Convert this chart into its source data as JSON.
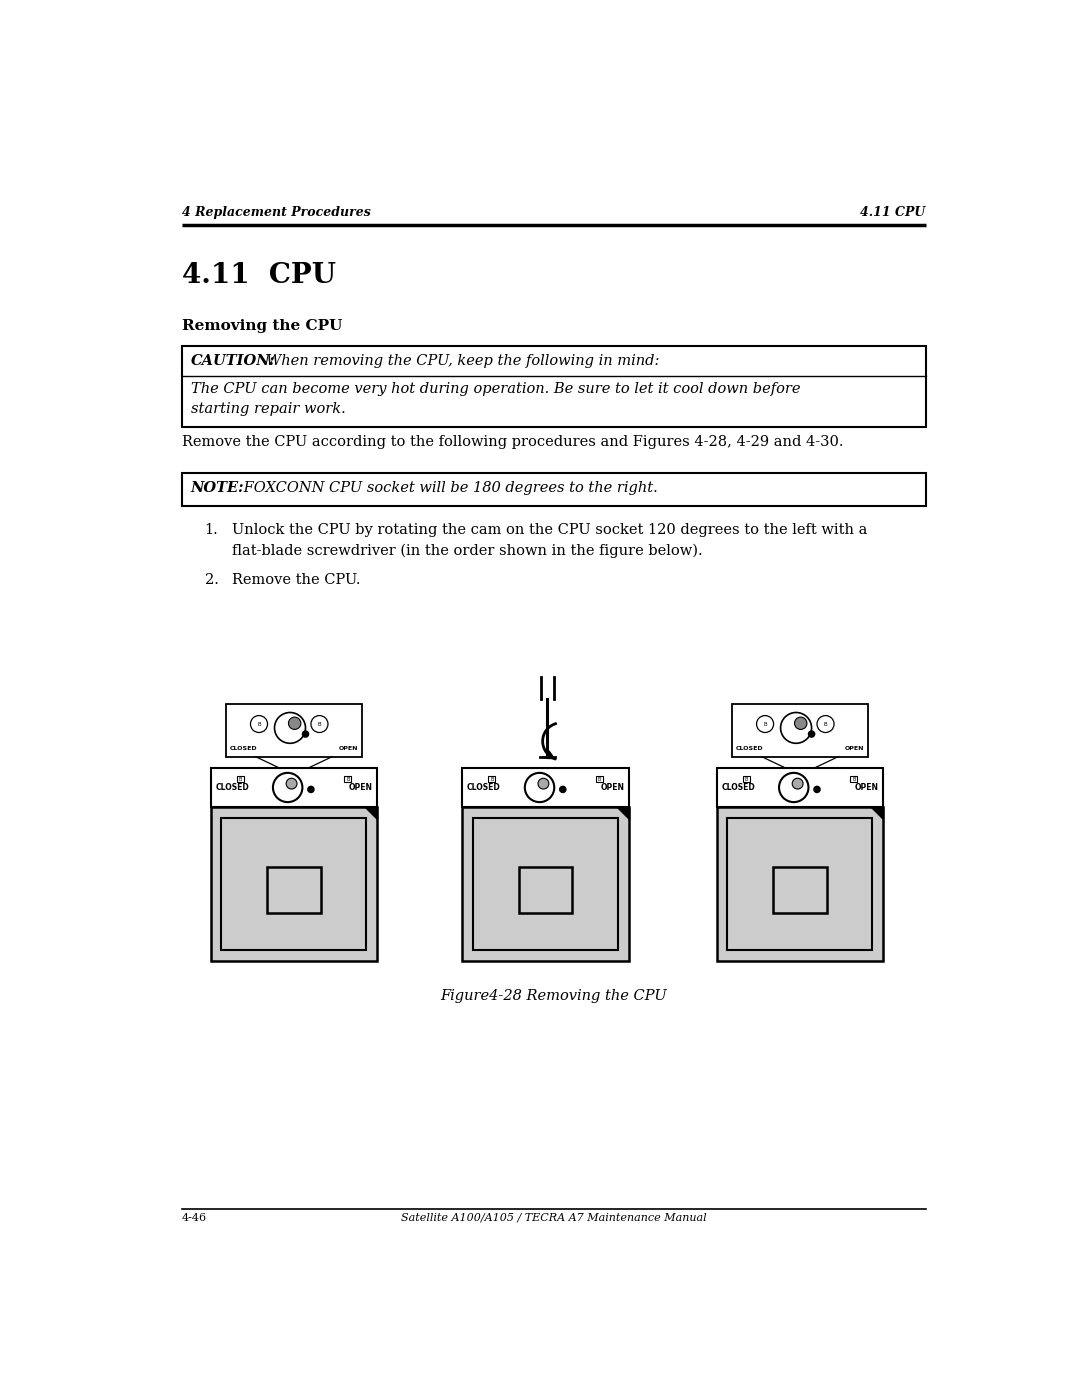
{
  "page_width": 10.8,
  "page_height": 13.97,
  "bg_color": "#ffffff",
  "header_left": "4 Replacement Procedures",
  "header_right": "4.11 CPU",
  "footer_left": "4-46",
  "footer_right": "Satellite A100/A105 / TECRA A7 Maintenance Manual",
  "section_title": "4.11  CPU",
  "subsection_title": "Removing the CPU",
  "caution_label": "CAUTION:",
  "caution_text": "  When removing the CPU, keep the following in mind:",
  "caution_body": "The CPU can become very hot during operation. Be sure to let it cool down before\nstarting repair work.",
  "remove_text": "Remove the CPU according to the following procedures and Figures 4-28, 4-29 and 4-30.",
  "note_label": "NOTE:",
  "note_text": " FOXCONN CPU socket will be 180 degrees to the right.",
  "step1_num": "1.",
  "step1_text": "Unlock the CPU by rotating the cam on the CPU socket 120 degrees to the left with a\nflat-blade screwdriver (in the order shown in the figure below).",
  "step2_num": "2.",
  "step2_text": "Remove the CPU.",
  "figure_caption": "Figure4-28 Removing the CPU",
  "gray_color": "#cccccc"
}
